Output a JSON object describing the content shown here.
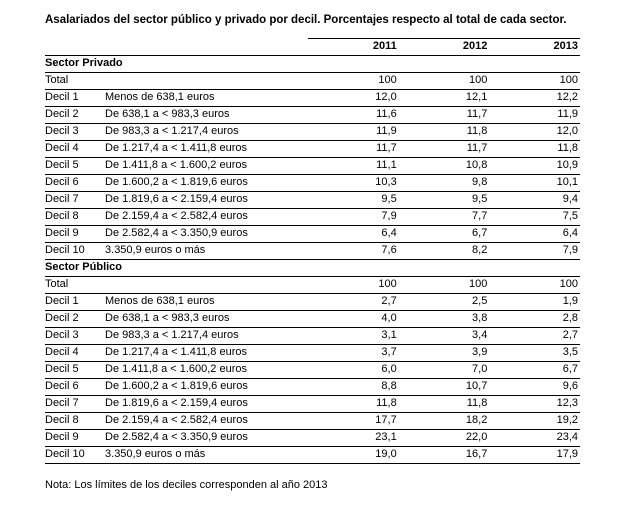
{
  "title": "Asalariados del sector público y privado por decil. Porcentajes respecto al total de cada sector.",
  "note": "Nota: Los límites de los deciles corresponden al año 2013",
  "table": {
    "years": [
      "2011",
      "2012",
      "2013"
    ],
    "sections": [
      {
        "name": "Sector Privado",
        "rows": [
          {
            "label": "Total",
            "range": "",
            "values": [
              "100",
              "100",
              "100"
            ]
          },
          {
            "label": "Decil 1",
            "range": "Menos de 638,1 euros",
            "values": [
              "12,0",
              "12,1",
              "12,2"
            ]
          },
          {
            "label": "Decil 2",
            "range": "De 638,1 a < 983,3  euros",
            "values": [
              "11,6",
              "11,7",
              "11,9"
            ]
          },
          {
            "label": "Decil 3",
            "range": "De 983,3 a < 1.217,4  euros",
            "values": [
              "11,9",
              "11,8",
              "12,0"
            ]
          },
          {
            "label": "Decil 4",
            "range": "De 1.217,4 a < 1.411,8  euros",
            "values": [
              "11,7",
              "11,7",
              "11,8"
            ]
          },
          {
            "label": "Decil 5",
            "range": "De 1.411,8 a < 1.600,2  euros",
            "values": [
              "11,1",
              "10,8",
              "10,9"
            ]
          },
          {
            "label": "Decil 6",
            "range": "De 1.600,2 a < 1.819,6  euros",
            "values": [
              "10,3",
              "9,8",
              "10,1"
            ]
          },
          {
            "label": "Decil 7",
            "range": "De 1.819,6 a < 2.159,4  euros",
            "values": [
              "9,5",
              "9,5",
              "9,4"
            ]
          },
          {
            "label": "Decil 8",
            "range": "De 2.159,4 a < 2.582,4  euros",
            "values": [
              "7,9",
              "7,7",
              "7,5"
            ]
          },
          {
            "label": "Decil 9",
            "range": "De 2.582,4 a < 3.350,9  euros",
            "values": [
              "6,4",
              "6,7",
              "6,4"
            ]
          },
          {
            "label": "Decil 10",
            "range": "3.350,9  euros o más",
            "values": [
              "7,6",
              "8,2",
              "7,9"
            ]
          }
        ]
      },
      {
        "name": "Sector Público",
        "rows": [
          {
            "label": "Total",
            "range": "",
            "values": [
              "100",
              "100",
              "100"
            ]
          },
          {
            "label": "Decil 1",
            "range": "Menos de 638,1 euros",
            "values": [
              "2,7",
              "2,5",
              "1,9"
            ]
          },
          {
            "label": "Decil 2",
            "range": "De 638,1 a < 983,3  euros",
            "values": [
              "4,0",
              "3,8",
              "2,8"
            ]
          },
          {
            "label": "Decil 3",
            "range": "De 983,3 a < 1.217,4  euros",
            "values": [
              "3,1",
              "3,4",
              "2,7"
            ]
          },
          {
            "label": "Decil 4",
            "range": "De 1.217,4 a < 1.411,8  euros",
            "values": [
              "3,7",
              "3,9",
              "3,5"
            ]
          },
          {
            "label": "Decil 5",
            "range": "De 1.411,8 a < 1.600,2  euros",
            "values": [
              "6,0",
              "7,0",
              "6,7"
            ]
          },
          {
            "label": "Decil 6",
            "range": "De 1.600,2 a < 1.819,6  euros",
            "values": [
              "8,8",
              "10,7",
              "9,6"
            ]
          },
          {
            "label": "Decil 7",
            "range": "De 1.819,6 a < 2.159,4  euros",
            "values": [
              "11,8",
              "11,8",
              "12,3"
            ]
          },
          {
            "label": "Decil 8",
            "range": "De 2.159,4 a < 2.582,4  euros",
            "values": [
              "17,7",
              "18,2",
              "19,2"
            ]
          },
          {
            "label": "Decil 9",
            "range": "De 2.582,4 a < 3.350,9  euros",
            "values": [
              "23,1",
              "22,0",
              "23,4"
            ]
          },
          {
            "label": "Decil 10",
            "range": "3.350,9  euros o más",
            "values": [
              "19,0",
              "16,7",
              "17,9"
            ]
          }
        ]
      }
    ]
  }
}
